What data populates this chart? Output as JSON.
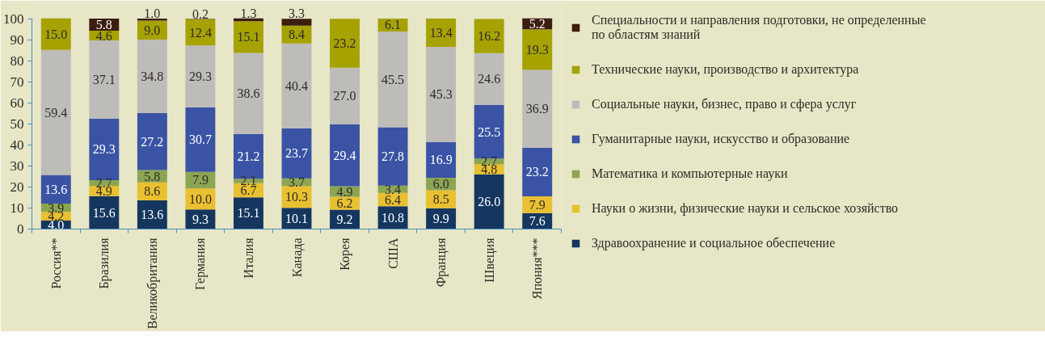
{
  "chart_data": {
    "type": "bar",
    "stacked": true,
    "legend": "right",
    "categories": [
      "Россия**",
      "Бразилия",
      "Великобритания",
      "Германия",
      "Италия",
      "Канада",
      "Корея",
      "США",
      "Франция",
      "Швеция",
      "Япония***"
    ],
    "ylim": [
      0,
      100.1
    ],
    "yticks": [
      0,
      10,
      20,
      30,
      40,
      50,
      60,
      70,
      80,
      90,
      100
    ],
    "series": [
      {
        "name": "Здравоохранение и социальное обеспечение",
        "color": "#15375f",
        "values": [
          4.0,
          15.6,
          13.6,
          9.3,
          15.1,
          10.1,
          9.2,
          10.8,
          9.9,
          26.0,
          7.6
        ],
        "value_labels": [
          "4.0",
          "15.6",
          "13.6",
          "9.3",
          "15.1",
          "10.1",
          "9.2",
          "10.8",
          "9.9",
          "26.0",
          "7.6"
        ]
      },
      {
        "name": "Науки о жизни, физические науки и сельское хозяйство",
        "color": "#e9c031",
        "values": [
          4.2,
          4.9,
          8.6,
          10.0,
          6.7,
          10.3,
          6.2,
          6.4,
          8.5,
          4.8,
          7.9
        ],
        "value_labels": [
          "4.2",
          "4.9",
          "8.6",
          "10.0",
          "6.7",
          "10.3",
          "6.2",
          "6.4",
          "8.5",
          "4.8",
          "7.9"
        ]
      },
      {
        "name": "Математика и компьютерные науки",
        "color": "#8ca553",
        "values": [
          3.9,
          2.7,
          5.8,
          7.9,
          2.1,
          3.7,
          4.9,
          3.4,
          6.0,
          2.7,
          null
        ],
        "value_labels": [
          "3.9",
          "2.7",
          "5.8",
          "7.9",
          "2.1",
          "3.7",
          "4.9",
          "3.4",
          "6.0",
          "2.7",
          null
        ]
      },
      {
        "name": "Гуманитарные науки, искусство и образование",
        "color": "#3a53a4",
        "values": [
          13.6,
          29.3,
          27.2,
          30.7,
          21.2,
          23.7,
          29.4,
          27.8,
          16.9,
          25.5,
          23.2
        ],
        "value_labels": [
          "13.6",
          "29.3",
          "27.2",
          "30.7",
          "21.2",
          "23.7",
          "29.4",
          "27.8",
          "16.9",
          "25.5",
          "23.2"
        ]
      },
      {
        "name": "Социальные науки, бизнес, право и сфера услуг",
        "color": "#bebcb9",
        "values": [
          59.4,
          37.1,
          34.8,
          29.3,
          38.6,
          40.4,
          27.0,
          45.5,
          45.3,
          24.6,
          36.9
        ],
        "value_labels": [
          "59.4",
          "37.1",
          "34.8",
          "29.3",
          "38.6",
          "40.4",
          "27.0",
          "45.5",
          "45.3",
          "24.6",
          "36.9"
        ]
      },
      {
        "name": "Технические науки, производство и архитектура",
        "color": "#a6a200",
        "values": [
          15.0,
          4.6,
          9.0,
          12.4,
          15.1,
          8.4,
          23.2,
          6.1,
          13.4,
          16.2,
          19.3
        ],
        "value_labels": [
          "15.0",
          "4.6",
          "9.0",
          "12.4",
          "15.1",
          "8.4",
          "23.2",
          "6.1",
          "13.4",
          "16.2",
          "19.3"
        ]
      },
      {
        "name": "Специальности и направления подготовки, не определенные по областям знаний",
        "color": "#3b1e10",
        "values": [
          null,
          5.8,
          1.0,
          0.2,
          1.3,
          3.3,
          null,
          null,
          null,
          null,
          5.2
        ],
        "value_labels": [
          null,
          "5.8",
          "1.0",
          "0.2",
          "1.3",
          "3.3",
          null,
          null,
          null,
          null,
          "5.2"
        ]
      }
    ]
  }
}
